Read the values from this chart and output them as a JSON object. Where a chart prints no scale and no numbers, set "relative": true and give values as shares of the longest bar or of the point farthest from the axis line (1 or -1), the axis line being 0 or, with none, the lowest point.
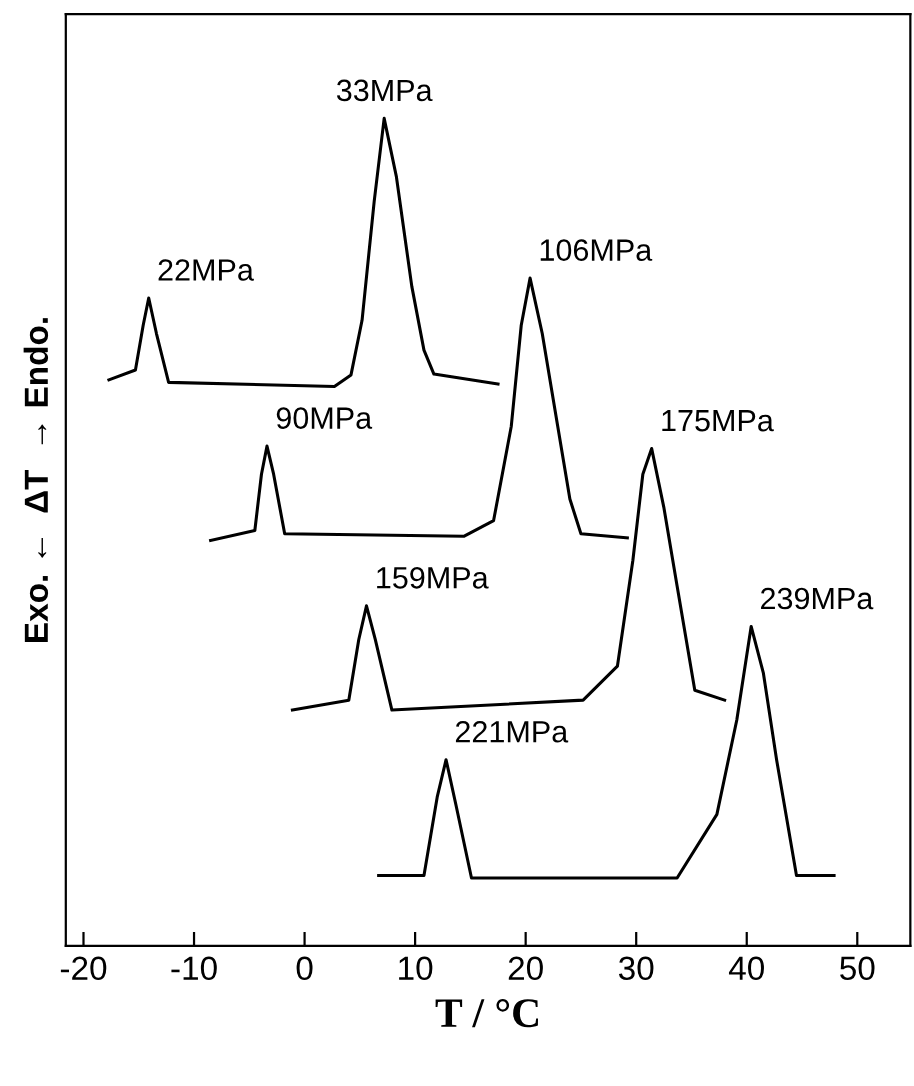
{
  "chart_data": {
    "type": "line",
    "relative": true,
    "xlabel": "T / °C",
    "ylabel": "Exo. ←  ΔT  → Endo.",
    "xlim": [
      -21.6,
      54.8
    ],
    "xticks": [
      -20,
      -10,
      0,
      10,
      20,
      30,
      40,
      50
    ],
    "grid": false,
    "series": [
      {
        "color": "#000000",
        "x": [
          -17.7,
          -15.3,
          -14.6,
          -14.1,
          -13.4,
          -12.3,
          2.7,
          4.2,
          5.2,
          6.3,
          7.2,
          8.3,
          9.7,
          10.8,
          11.7,
          17.5
        ],
        "values": [
          0.684,
          0.696,
          0.75,
          0.783,
          0.74,
          0.681,
          0.676,
          0.69,
          0.756,
          0.9,
          1,
          0.93,
          0.797,
          0.72,
          0.691,
          0.679
        ]
      },
      {
        "color": "#000000",
        "x": [
          -8.5,
          -4.5,
          -3.9,
          -3.4,
          -2.8,
          -1.8,
          14.4,
          17.1,
          18.7,
          19.6,
          20.4,
          21.5,
          22.9,
          24.0,
          25.0,
          29.2
        ],
        "values": [
          0.49,
          0.502,
          0.57,
          0.604,
          0.57,
          0.498,
          0.495,
          0.514,
          0.628,
          0.75,
          0.807,
          0.74,
          0.628,
          0.54,
          0.498,
          0.493
        ]
      },
      {
        "color": "#000000",
        "x": [
          -1.1,
          4.0,
          4.9,
          5.6,
          6.4,
          7.9,
          25.2,
          28.3,
          29.7,
          30.6,
          31.4,
          32.5,
          33.7,
          35.3,
          38.0
        ],
        "values": [
          0.285,
          0.297,
          0.37,
          0.411,
          0.37,
          0.285,
          0.297,
          0.338,
          0.466,
          0.57,
          0.601,
          0.53,
          0.435,
          0.309,
          0.297
        ]
      },
      {
        "color": "#000000",
        "x": [
          6.7,
          10.8,
          12.0,
          12.8,
          13.7,
          15.1,
          33.7,
          37.3,
          39.1,
          40.4,
          41.5,
          42.7,
          44.5,
          47.9
        ],
        "values": [
          0.085,
          0.085,
          0.18,
          0.225,
          0.17,
          0.082,
          0.082,
          0.159,
          0.273,
          0.386,
          0.33,
          0.225,
          0.085,
          0.085
        ]
      }
    ],
    "annotations": [
      {
        "text": "22MPa",
        "x": -14.1,
        "y": 0.783
      },
      {
        "text": "33MPa",
        "x": 7.2,
        "y": 1
      },
      {
        "text": "90MPa",
        "x": -3.4,
        "y": 0.604
      },
      {
        "text": "106MPa",
        "x": 20.4,
        "y": 0.807
      },
      {
        "text": "159MPa",
        "x": 5.6,
        "y": 0.411
      },
      {
        "text": "175MPa",
        "x": 31.4,
        "y": 0.601
      },
      {
        "text": "221MPa",
        "x": 12.8,
        "y": 0.225
      },
      {
        "text": "239MPa",
        "x": 40.4,
        "y": 0.386
      }
    ]
  }
}
